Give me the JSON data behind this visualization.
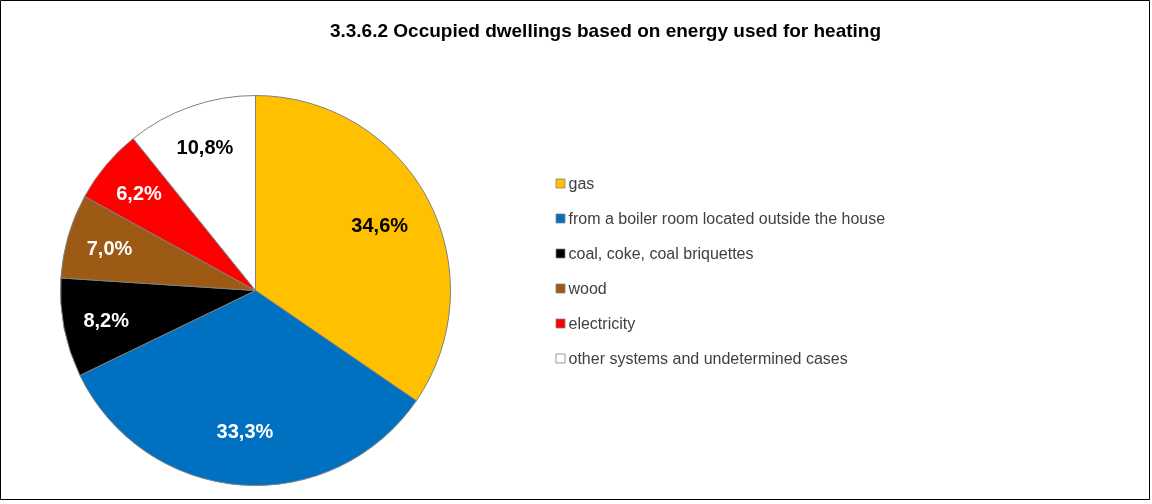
{
  "chart_data": {
    "type": "pie",
    "title": "3.3.6.2 Occupied dwellings based on energy used for heating",
    "categories": [
      "gas",
      "from a boiler room located outside the house",
      "coal, coke, coal briquettes",
      "wood",
      "electricity",
      "other systems and undetermined cases"
    ],
    "values": [
      34.6,
      33.3,
      8.2,
      7.0,
      6.2,
      10.8
    ],
    "value_labels": [
      "34,6%",
      "33,3%",
      "8,2%",
      "7,0%",
      "6,2%",
      "10,8%"
    ],
    "colors": [
      "#ffc000",
      "#0070c0",
      "#000000",
      "#9c5a14",
      "#ff0000",
      "#ffffff"
    ],
    "legend": "right"
  }
}
